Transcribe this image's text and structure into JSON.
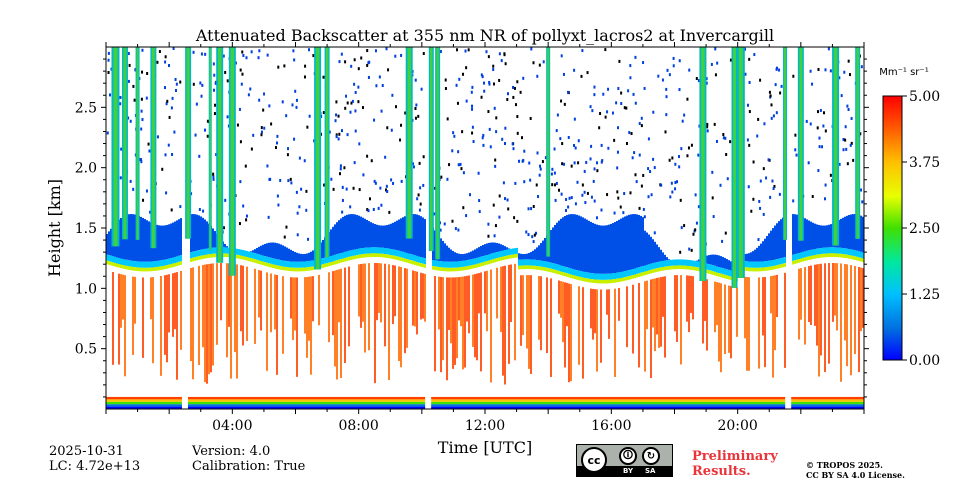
{
  "chart_data": {
    "type": "heatmap",
    "title": "Attenuated Backscatter at 355 nm NR of pollyxt_lacros2 at Invercargill",
    "xlabel": "Time [UTC]",
    "ylabel": "Height [km]",
    "xlim": [
      0,
      24
    ],
    "ylim": [
      0,
      3.0
    ],
    "x_ticks": [
      4,
      8,
      12,
      16,
      20
    ],
    "x_tick_labels": [
      "04:00",
      "08:00",
      "12:00",
      "16:00",
      "20:00"
    ],
    "y_ticks": [
      0.5,
      1.0,
      1.5,
      2.0,
      2.5
    ],
    "y_tick_labels": [
      "0.5",
      "1.0",
      "1.5",
      "2.0",
      "2.5"
    ],
    "colorbar": {
      "label": "Mm⁻¹ sr⁻¹",
      "min": 0.0,
      "max": 5.0,
      "ticks": [
        0.0,
        1.25,
        2.5,
        3.75,
        5.0
      ],
      "tick_labels": [
        "0.00",
        "1.25",
        "2.50",
        "3.75",
        "5.00"
      ],
      "colors": [
        "#0000ff",
        "#0070e0",
        "#00c0ff",
        "#00e8a0",
        "#40e000",
        "#e8ff00",
        "#ffc000",
        "#ff6000",
        "#ff0000"
      ]
    },
    "layers": [
      {
        "name": "aerosol layer",
        "approx_backscatter": 4.5,
        "height_range_km": [
          0.2,
          1.25
        ]
      },
      {
        "name": "aerosol layer top",
        "approx_backscatter": 0.3,
        "height_range_km": [
          1.3,
          1.75
        ]
      },
      {
        "name": "surface band",
        "approx_backscatter": 2.5,
        "height_range_km": [
          0.0,
          0.1
        ]
      }
    ],
    "cloud_times_utc": [
      0.3,
      0.6,
      1.0,
      1.5,
      2.6,
      3.3,
      3.6,
      4.0,
      6.7,
      7.0,
      9.6,
      10.3,
      10.5,
      14.0,
      18.9,
      19.9,
      20.1,
      21.5,
      22.0,
      23.1,
      23.8
    ],
    "missing_times_utc": [
      2.5,
      10.2,
      21.6
    ]
  },
  "footer": {
    "date": "2025-10-31",
    "lc": "LC: 4.72e+13",
    "version": "Version: 4.0",
    "calibration": "Calibration: True",
    "preliminary_line1": "Preliminary",
    "preliminary_line2": "Results.",
    "copyright_line1": "© TROPOS 2025.",
    "copyright_line2": "CC BY SA 4.0 License.",
    "license_by": "BY",
    "license_sa": "SA",
    "license_cc": "cc"
  }
}
